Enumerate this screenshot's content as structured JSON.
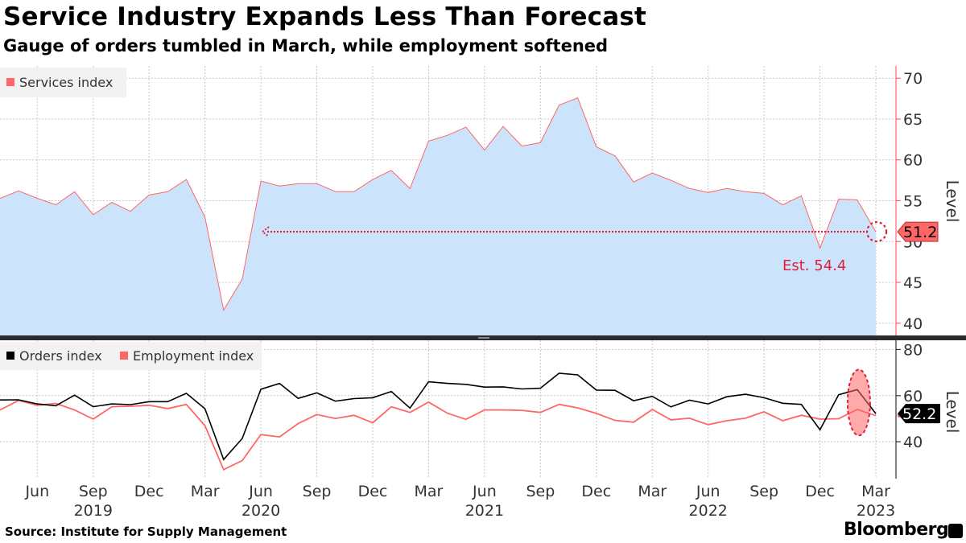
{
  "header": {
    "title": "Service Industry Expands Less Than Forecast",
    "subtitle": "Gauge of orders tumbled in March, while employment softened"
  },
  "footer": {
    "source": "Source: Institute for Supply Management",
    "brand": "Bloomberg"
  },
  "colors": {
    "services_fill": "#cce4fb",
    "services_line": "#ff6666",
    "orders_line": "#000000",
    "employment_line": "#ff6666",
    "annotation": "#e0203a",
    "grid": "#c8c8c8"
  },
  "chart_data": [
    {
      "type": "area",
      "months": [
        "2019-04",
        "2019-05",
        "2019-06",
        "2019-07",
        "2019-08",
        "2019-09",
        "2019-10",
        "2019-11",
        "2019-12",
        "2020-01",
        "2020-02",
        "2020-03",
        "2020-04",
        "2020-05",
        "2020-06",
        "2020-07",
        "2020-08",
        "2020-09",
        "2020-10",
        "2020-11",
        "2020-12",
        "2021-01",
        "2021-02",
        "2021-03",
        "2021-04",
        "2021-05",
        "2021-06",
        "2021-07",
        "2021-08",
        "2021-09",
        "2021-10",
        "2021-11",
        "2021-12",
        "2022-01",
        "2022-02",
        "2022-03",
        "2022-04",
        "2022-05",
        "2022-06",
        "2022-07",
        "2022-08",
        "2022-09",
        "2022-10",
        "2022-11",
        "2022-12",
        "2023-01",
        "2023-02",
        "2023-03"
      ],
      "series": [
        {
          "name": "Services index",
          "values": [
            55.3,
            56.2,
            55.3,
            54.5,
            56.1,
            53.3,
            54.8,
            53.7,
            55.7,
            56.1,
            57.6,
            53.0,
            41.6,
            45.4,
            57.4,
            56.8,
            57.1,
            57.1,
            56.1,
            56.1,
            57.6,
            58.7,
            56.5,
            62.3,
            63.0,
            64.0,
            61.2,
            64.1,
            61.7,
            62.1,
            66.7,
            67.6,
            61.6,
            60.5,
            57.3,
            58.4,
            57.5,
            56.5,
            56.0,
            56.5,
            56.1,
            55.9,
            54.5,
            55.6,
            49.2,
            55.2,
            55.1,
            51.2
          ]
        }
      ],
      "ylabel": "Level",
      "ylim": [
        38.5,
        71.5
      ],
      "y_ticks": [
        40,
        45,
        50,
        55,
        60,
        65,
        70
      ],
      "grid": true,
      "legend": "top-left",
      "annotations": {
        "last_value": "51.2",
        "estimate": "Est. 54.4",
        "reference_level": 51.2
      }
    },
    {
      "type": "line",
      "months": [
        "2019-04",
        "2019-05",
        "2019-06",
        "2019-07",
        "2019-08",
        "2019-09",
        "2019-10",
        "2019-11",
        "2019-12",
        "2020-01",
        "2020-02",
        "2020-03",
        "2020-04",
        "2020-05",
        "2020-06",
        "2020-07",
        "2020-08",
        "2020-09",
        "2020-10",
        "2020-11",
        "2020-12",
        "2021-01",
        "2021-02",
        "2021-03",
        "2021-04",
        "2021-05",
        "2021-06",
        "2021-07",
        "2021-08",
        "2021-09",
        "2021-10",
        "2021-11",
        "2021-12",
        "2022-01",
        "2022-02",
        "2022-03",
        "2022-04",
        "2022-05",
        "2022-06",
        "2022-07",
        "2022-08",
        "2022-09",
        "2022-10",
        "2022-11",
        "2022-12",
        "2023-01",
        "2023-02",
        "2023-03"
      ],
      "series": [
        {
          "name": "Orders index",
          "values": [
            58.1,
            58.2,
            56.4,
            55.6,
            60.2,
            55.2,
            56.4,
            56.1,
            57.4,
            57.4,
            61.0,
            54.3,
            32.3,
            41.4,
            62.8,
            65.3,
            58.8,
            61.2,
            57.6,
            58.7,
            59.1,
            61.8,
            54.6,
            66.0,
            65.3,
            64.9,
            63.7,
            63.8,
            62.9,
            63.2,
            69.7,
            69.0,
            62.4,
            62.3,
            57.8,
            59.7,
            55.1,
            58.0,
            56.4,
            59.5,
            60.6,
            59.1,
            56.7,
            56.2,
            45.2,
            60.4,
            62.6,
            52.2
          ]
        },
        {
          "name": "Employment index",
          "values": [
            53.8,
            57.9,
            55.8,
            56.6,
            53.8,
            49.8,
            55.2,
            55.4,
            55.8,
            54.4,
            56.2,
            47.0,
            27.9,
            31.8,
            43.1,
            42.1,
            47.9,
            51.8,
            50.1,
            51.5,
            48.2,
            55.2,
            52.7,
            57.2,
            52.4,
            49.7,
            53.8,
            53.8,
            53.6,
            52.7,
            56.2,
            54.7,
            52.3,
            49.3,
            48.5,
            54.0,
            49.5,
            50.2,
            47.4,
            49.1,
            50.2,
            53.0,
            49.1,
            51.5,
            49.8,
            50.0,
            54.0,
            51.3
          ]
        }
      ],
      "ylabel": "Level",
      "ylim": [
        24,
        84
      ],
      "y_ticks": [
        40,
        60,
        80
      ],
      "grid": true,
      "legend": "top-left",
      "annotations": {
        "last_value": "52.2"
      },
      "x_tick_labels": [
        "Jun",
        "Sep",
        "Dec",
        "Mar",
        "Jun",
        "Sep",
        "Dec",
        "Mar",
        "Jun",
        "Sep",
        "Dec",
        "Mar",
        "Jun",
        "Sep",
        "Dec",
        "Mar"
      ],
      "x_tick_months": [
        "2019-06",
        "2019-09",
        "2019-12",
        "2020-03",
        "2020-06",
        "2020-09",
        "2020-12",
        "2021-03",
        "2021-06",
        "2021-09",
        "2021-12",
        "2022-03",
        "2022-06",
        "2022-09",
        "2022-12",
        "2023-03"
      ],
      "x_year_labels": [
        "2019",
        "2020",
        "2021",
        "2022",
        "2023"
      ],
      "x_year_months": [
        "2019-09",
        "2020-06",
        "2021-06",
        "2022-06",
        "2023-03"
      ]
    }
  ]
}
